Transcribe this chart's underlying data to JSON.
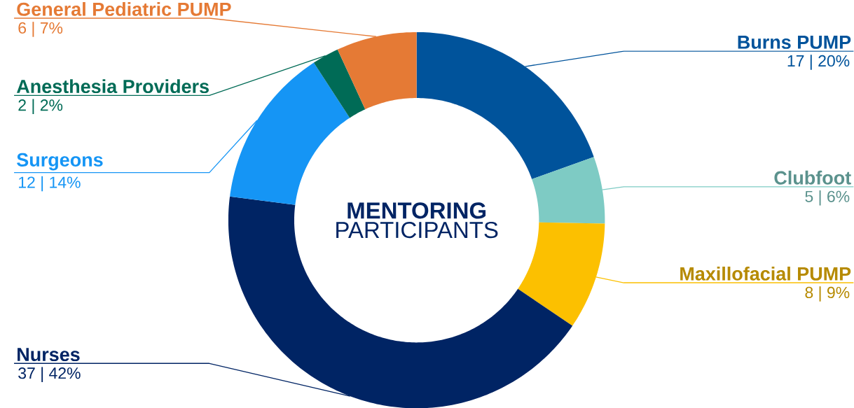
{
  "chart_data": {
    "type": "donut",
    "title": "MENTORING",
    "subtitle": "PARTICIPANTS",
    "categories": [
      "Burns PUMP",
      "Clubfoot",
      "Maxillofacial PUMP",
      "Nurses",
      "Surgeons",
      "Anesthesia Providers",
      "General Pediatric PUMP"
    ],
    "values": [
      17,
      5,
      8,
      37,
      12,
      2,
      6
    ],
    "value_labels": [
      "17 | 20%",
      "5 | 6%",
      "8 | 9%",
      "37 | 42%",
      "12 | 14%",
      "2 | 2%",
      "6 | 7%"
    ],
    "colors": [
      "#00539b",
      "#7ecbc4",
      "#fcc000",
      "#002464",
      "#1595f5",
      "#006b56",
      "#e57a35"
    ]
  }
}
